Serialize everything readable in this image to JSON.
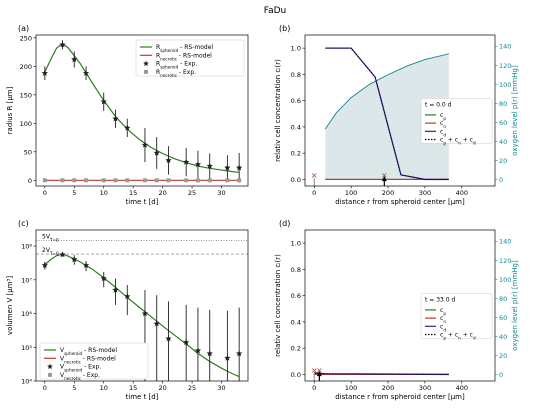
{
  "figure_title": "FaDu",
  "colors": {
    "spheroid": "#2e7d1e",
    "necrotic": "#c0392b",
    "marker": "#222222",
    "marker_grey": "#999999",
    "cp": "#2e7d1e",
    "cn": "#c0392b",
    "cd": "#3c1e8c",
    "oxygen": "#17858f",
    "oxygen_fill": "#dce7ea",
    "sum": "#000000",
    "arrow": "#000000"
  },
  "chart_data": [
    {
      "id": "a",
      "panel_label": "(a)",
      "type": "line",
      "xlabel": "time t [d]",
      "ylabel": "radius R [µm]",
      "xlim": [
        -1.5,
        34.5
      ],
      "ylim": [
        -10,
        255
      ],
      "xticks": [
        0,
        5,
        10,
        15,
        20,
        25,
        30
      ],
      "yticks": [
        0,
        50,
        100,
        150,
        200,
        250
      ],
      "legend": [
        "R_spheroid - RS-model",
        "R_necrotic - RS-model",
        "R_spheroid - Exp.",
        "R_necrotic - Exp."
      ],
      "legend_items": [
        {
          "base": "R",
          "sub": "spheroid",
          "rest": " - RS-model"
        },
        {
          "base": "R",
          "sub": "necrotic",
          "rest": " - RS-model"
        },
        {
          "base": "R",
          "sub": "spheroid",
          "rest": " - Exp."
        },
        {
          "base": "R",
          "sub": "necrotic",
          "rest": " - Exp."
        }
      ],
      "legend_position": "top-right",
      "model_spheroid": {
        "x": [
          0,
          1,
          2,
          3,
          4,
          6,
          8,
          10,
          12,
          14,
          16,
          18,
          20,
          22,
          24,
          26,
          28,
          30,
          32,
          33
        ],
        "y": [
          190,
          212,
          232,
          240,
          232,
          205,
          172,
          140,
          112,
          90,
          72,
          58,
          47,
          38,
          31,
          25,
          21,
          18,
          15,
          14
        ]
      },
      "model_necrotic": {
        "x": [
          0,
          33
        ],
        "y": [
          0,
          0
        ]
      },
      "exp_spheroid": {
        "x": [
          0,
          3,
          5,
          7,
          10,
          12,
          14,
          17,
          19,
          21,
          24,
          26,
          28,
          31,
          33
        ],
        "y": [
          188,
          238,
          212,
          188,
          138,
          108,
          92,
          62,
          48,
          35,
          32,
          28,
          25,
          22,
          22
        ],
        "err": [
          12,
          8,
          14,
          12,
          16,
          16,
          16,
          30,
          28,
          25,
          25,
          24,
          22,
          22,
          26
        ]
      },
      "exp_necrotic": {
        "x": [
          0,
          3,
          5,
          7,
          10,
          12,
          14,
          17,
          19,
          21,
          24,
          26,
          28,
          31,
          33
        ],
        "y": [
          0,
          0,
          0,
          0,
          0,
          0,
          0,
          0,
          0,
          0,
          0,
          0,
          0,
          0,
          0
        ]
      }
    },
    {
      "id": "c",
      "panel_label": "(c)",
      "type": "line",
      "yscale": "log",
      "xlabel": "time t [d]",
      "ylabel": "volumen V [µm³]",
      "xlim": [
        -1.5,
        34.5
      ],
      "ylim": [
        10000,
        300000000
      ],
      "xticks": [
        0,
        5,
        10,
        15,
        20,
        25,
        30
      ],
      "yticks": [
        "10⁴",
        "10⁵",
        "10⁶",
        "10⁷",
        "10⁸"
      ],
      "ytick_values": [
        10000,
        100000,
        1000000,
        10000000,
        100000000
      ],
      "hlines": [
        {
          "label_base": "5V",
          "label_sub": "T=0",
          "value": 145000000,
          "style": "dotted"
        },
        {
          "label_base": "2V",
          "label_sub": "T=0",
          "value": 58000000,
          "style": "dashed"
        }
      ],
      "legend": [
        "V_spheroid - RS-model",
        "V_necrotic - RS-model",
        "V_spheroid - Exp.",
        "V_necrotic - Exp."
      ],
      "legend_items": [
        {
          "base": "V",
          "sub": "spheroid",
          "rest": " - RS-model"
        },
        {
          "base": "V",
          "sub": "necrotic",
          "rest": " - RS-model"
        },
        {
          "base": "V",
          "sub": "spheroid",
          "rest": " - Exp."
        },
        {
          "base": "V",
          "sub": "necrotic",
          "rest": " - Exp."
        }
      ],
      "legend_position": "bottom-left",
      "model_spheroid": {
        "x": [
          0,
          1,
          2,
          3,
          4,
          6,
          8,
          10,
          12,
          14,
          16,
          18,
          20,
          22,
          24,
          26,
          28,
          30,
          32,
          33
        ],
        "y": [
          28000000,
          40000000,
          52000000,
          57000000,
          50000000,
          34000000,
          21000000,
          11500000,
          6000000,
          3000000,
          1550000,
          820000,
          430000,
          230000,
          125000,
          66000,
          38000,
          24000,
          16000,
          13500
        ]
      },
      "exp_spheroid": {
        "x": [
          0,
          3,
          5,
          7,
          10,
          12,
          14,
          17,
          19,
          21,
          24,
          26,
          28,
          31,
          33
        ],
        "y": [
          27000000,
          56000000,
          40000000,
          27000000,
          11000000,
          5000000,
          3200000,
          1000000,
          500000,
          180000,
          140000,
          80000,
          65000,
          48000,
          65000
        ],
        "lo": [
          20000000,
          50000000,
          28000000,
          18000000,
          6000000,
          1800000,
          900000,
          10000,
          10000,
          10000,
          10000,
          10000,
          10000,
          10000,
          10000
        ],
        "hi": [
          34000000,
          62000000,
          54000000,
          36000000,
          17000000,
          11000000,
          7000000,
          5000000,
          3500000,
          2300000,
          1800000,
          1500000,
          1300000,
          1200000,
          1500000
        ]
      }
    },
    {
      "id": "b",
      "panel_label": "(b)",
      "type": "line",
      "xlabel": "distance r from spheroid center [µm]",
      "ylabel": "relativ cell concentration cᵢ(r)",
      "ylabel_right": "oxygen level p(r) [mmHg]",
      "xlim": [
        -25,
        490
      ],
      "ylim": [
        -0.05,
        1.1
      ],
      "ylim_right": [
        -6.9,
        151.8
      ],
      "xticks": [
        0,
        100,
        200,
        300,
        400
      ],
      "yticks": [
        0.0,
        0.2,
        0.4,
        0.6,
        0.8,
        1.0
      ],
      "yticks_right": [
        0,
        20,
        40,
        60,
        80,
        100,
        120,
        140
      ],
      "annotation": "t = 0.0 d",
      "legend": [
        "c_p",
        "c_n",
        "c_d",
        "c_p + c_n + c_d"
      ],
      "legend_items": [
        {
          "parts": [
            {
              "b": "c",
              "s": "p"
            }
          ]
        },
        {
          "parts": [
            {
              "b": "c",
              "s": "n"
            }
          ]
        },
        {
          "parts": [
            {
              "b": "c",
              "s": "d"
            }
          ]
        },
        {
          "parts": [
            {
              "b": "c",
              "s": "p"
            },
            {
              "t": " + "
            },
            {
              "b": "c",
              "s": "n"
            },
            {
              "t": " + "
            },
            {
              "b": "c",
              "s": "d"
            }
          ]
        }
      ],
      "legend_position": "center-right",
      "oxygen": {
        "r": [
          30,
          60,
          100,
          150,
          200,
          250,
          300,
          365
        ],
        "p": [
          53,
          70,
          86,
          100,
          110,
          119,
          126,
          132
        ]
      },
      "cd": {
        "r": [
          30,
          100,
          165,
          235,
          300,
          365
        ],
        "c": [
          1.0,
          1.0,
          0.78,
          0.035,
          0.0,
          0.0
        ]
      },
      "cp": {
        "r": [
          30,
          365
        ],
        "c": [
          0.0,
          0.0
        ]
      },
      "cn": {
        "r": [
          30,
          365
        ],
        "c": [
          0.0,
          0.0
        ]
      },
      "markers_x": [
        0,
        190
      ],
      "arrow_r": 190
    },
    {
      "id": "d",
      "panel_label": "(d)",
      "type": "line",
      "xlabel": "distance r from spheroid center [µm]",
      "ylabel": "relativ cell concentration cᵢ(r)",
      "ylabel_right": "oxygen level p(r) [mmHg]",
      "xlim": [
        -25,
        490
      ],
      "ylim": [
        -0.05,
        1.1
      ],
      "ylim_right": [
        -6.9,
        151.8
      ],
      "xticks": [
        0,
        100,
        200,
        300,
        400
      ],
      "yticks": [
        0.0,
        0.2,
        0.4,
        0.6,
        0.8,
        1.0
      ],
      "yticks_right": [
        0,
        20,
        40,
        60,
        80,
        100,
        120,
        140
      ],
      "annotation": "t = 33.0 d",
      "legend": [
        "c_p",
        "c_n",
        "c_d",
        "c_p + c_n + c_d"
      ],
      "legend_items": [
        {
          "parts": [
            {
              "b": "c",
              "s": "p"
            }
          ]
        },
        {
          "parts": [
            {
              "b": "c",
              "s": "n"
            }
          ]
        },
        {
          "parts": [
            {
              "b": "c",
              "s": "d"
            }
          ]
        },
        {
          "parts": [
            {
              "b": "c",
              "s": "p"
            },
            {
              "t": " + "
            },
            {
              "b": "c",
              "s": "n"
            },
            {
              "t": " + "
            },
            {
              "b": "c",
              "s": "d"
            }
          ]
        }
      ],
      "legend_position": "center-right",
      "oxygen": {
        "r": [
          0,
          365
        ],
        "p": [
          0,
          0
        ]
      },
      "cd": {
        "r": [
          0,
          30,
          365
        ],
        "c": [
          0.012,
          0.005,
          0.0
        ]
      },
      "cp": {
        "r": [
          0,
          30,
          365
        ],
        "c": [
          0.008,
          0.004,
          0.0
        ]
      },
      "cn": {
        "r": [
          0,
          365
        ],
        "c": [
          0.0,
          0.0
        ]
      },
      "markers_x": [
        0,
        14
      ],
      "arrow_r": 14
    }
  ]
}
